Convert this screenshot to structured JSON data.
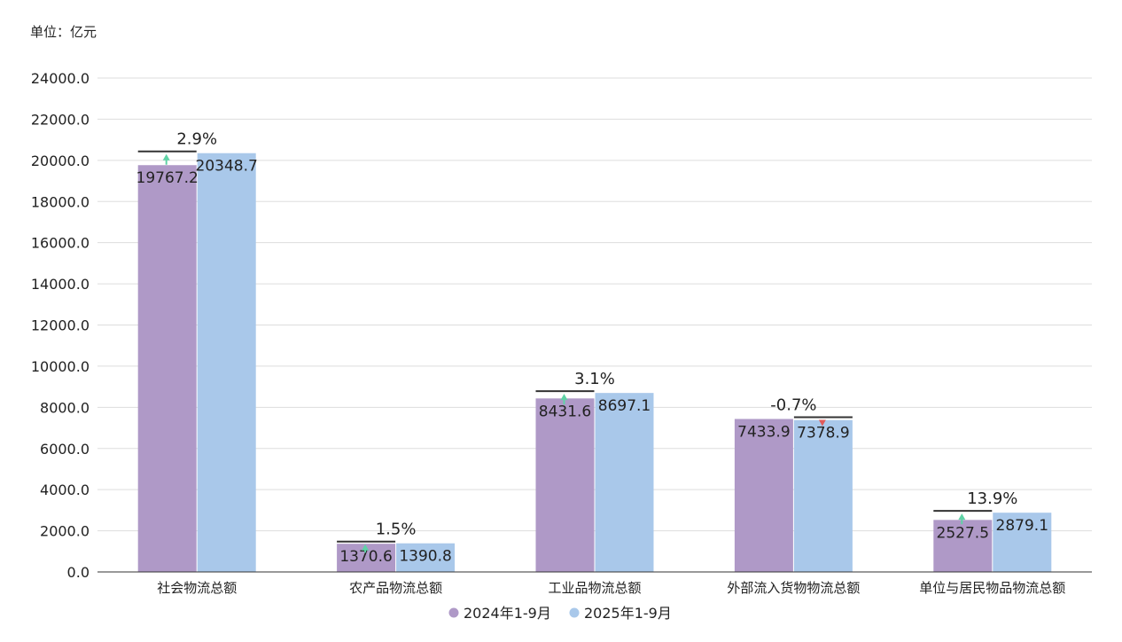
{
  "chart_data": {
    "type": "bar",
    "unit_label": "单位：亿元",
    "categories": [
      "社会物流总额",
      "农产品物流总额",
      "工业品物流总额",
      "外部流入货物物流总额",
      "单位与居民物品物流总额"
    ],
    "series": [
      {
        "name": "2024年1-9月",
        "color": "#af99c7",
        "values": [
          19767.2,
          1370.6,
          8431.6,
          7433.9,
          2527.5
        ],
        "labels": [
          "19767.2",
          "1370.6",
          "8431.6",
          "7433.9",
          "2527.5"
        ]
      },
      {
        "name": "2025年1-9月",
        "color": "#a9c8ea",
        "values": [
          20348.7,
          1390.8,
          8697.1,
          7378.9,
          2879.1
        ],
        "labels": [
          "20348.7",
          "1390.8",
          "8697.1",
          "7378.9",
          "2879.1"
        ]
      }
    ],
    "growth": [
      {
        "label": "2.9%",
        "direction": "up"
      },
      {
        "label": "1.5%",
        "direction": "up"
      },
      {
        "label": "3.1%",
        "direction": "up"
      },
      {
        "label": "-0.7%",
        "direction": "down"
      },
      {
        "label": "13.9%",
        "direction": "up"
      }
    ],
    "ylim": [
      0,
      24000
    ],
    "yticks": [
      "0.0",
      "2000.0",
      "4000.0",
      "6000.0",
      "8000.0",
      "10000.0",
      "12000.0",
      "14000.0",
      "16000.0",
      "18000.0",
      "20000.0",
      "22000.0",
      "24000.0"
    ],
    "ytick_values": [
      0,
      2000,
      4000,
      6000,
      8000,
      10000,
      12000,
      14000,
      16000,
      18000,
      20000,
      22000,
      24000
    ],
    "grid": true,
    "legend_position": "bottom-center",
    "colors": {
      "up_arrow": "#5fd3a6",
      "down_arrow": "#e05a5a",
      "grid": "#dddddd",
      "axis": "#333333",
      "marker_line": "#333333"
    }
  }
}
